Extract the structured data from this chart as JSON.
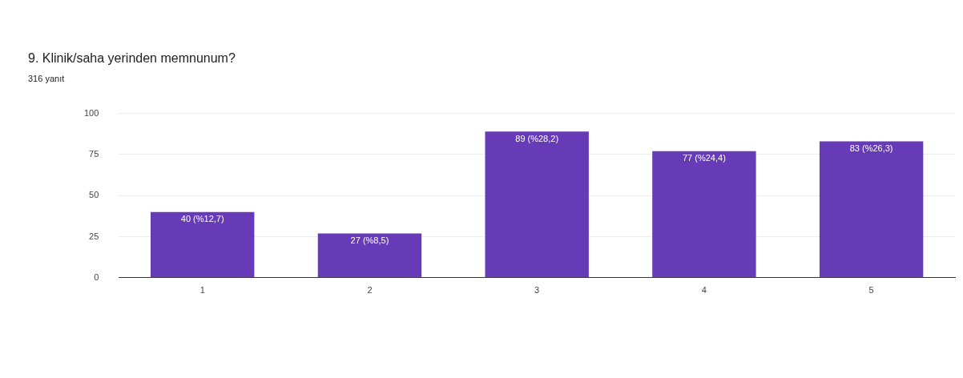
{
  "chart_data": {
    "type": "bar",
    "title": "9. Klinik/saha yerinden memnunum?",
    "subtitle": "316 yanıt",
    "categories": [
      "1",
      "2",
      "3",
      "4",
      "5"
    ],
    "values": [
      40,
      27,
      89,
      77,
      83
    ],
    "value_labels": [
      "40 (%12,7)",
      "27 (%8,5)",
      "89 (%28,2)",
      "77 (%24,4)",
      "83 (%26,3)"
    ],
    "color": "#673ab7",
    "ylim": [
      0,
      100
    ],
    "yticks": [
      0,
      25,
      50,
      75,
      100
    ],
    "grid": "y",
    "legend": false
  }
}
